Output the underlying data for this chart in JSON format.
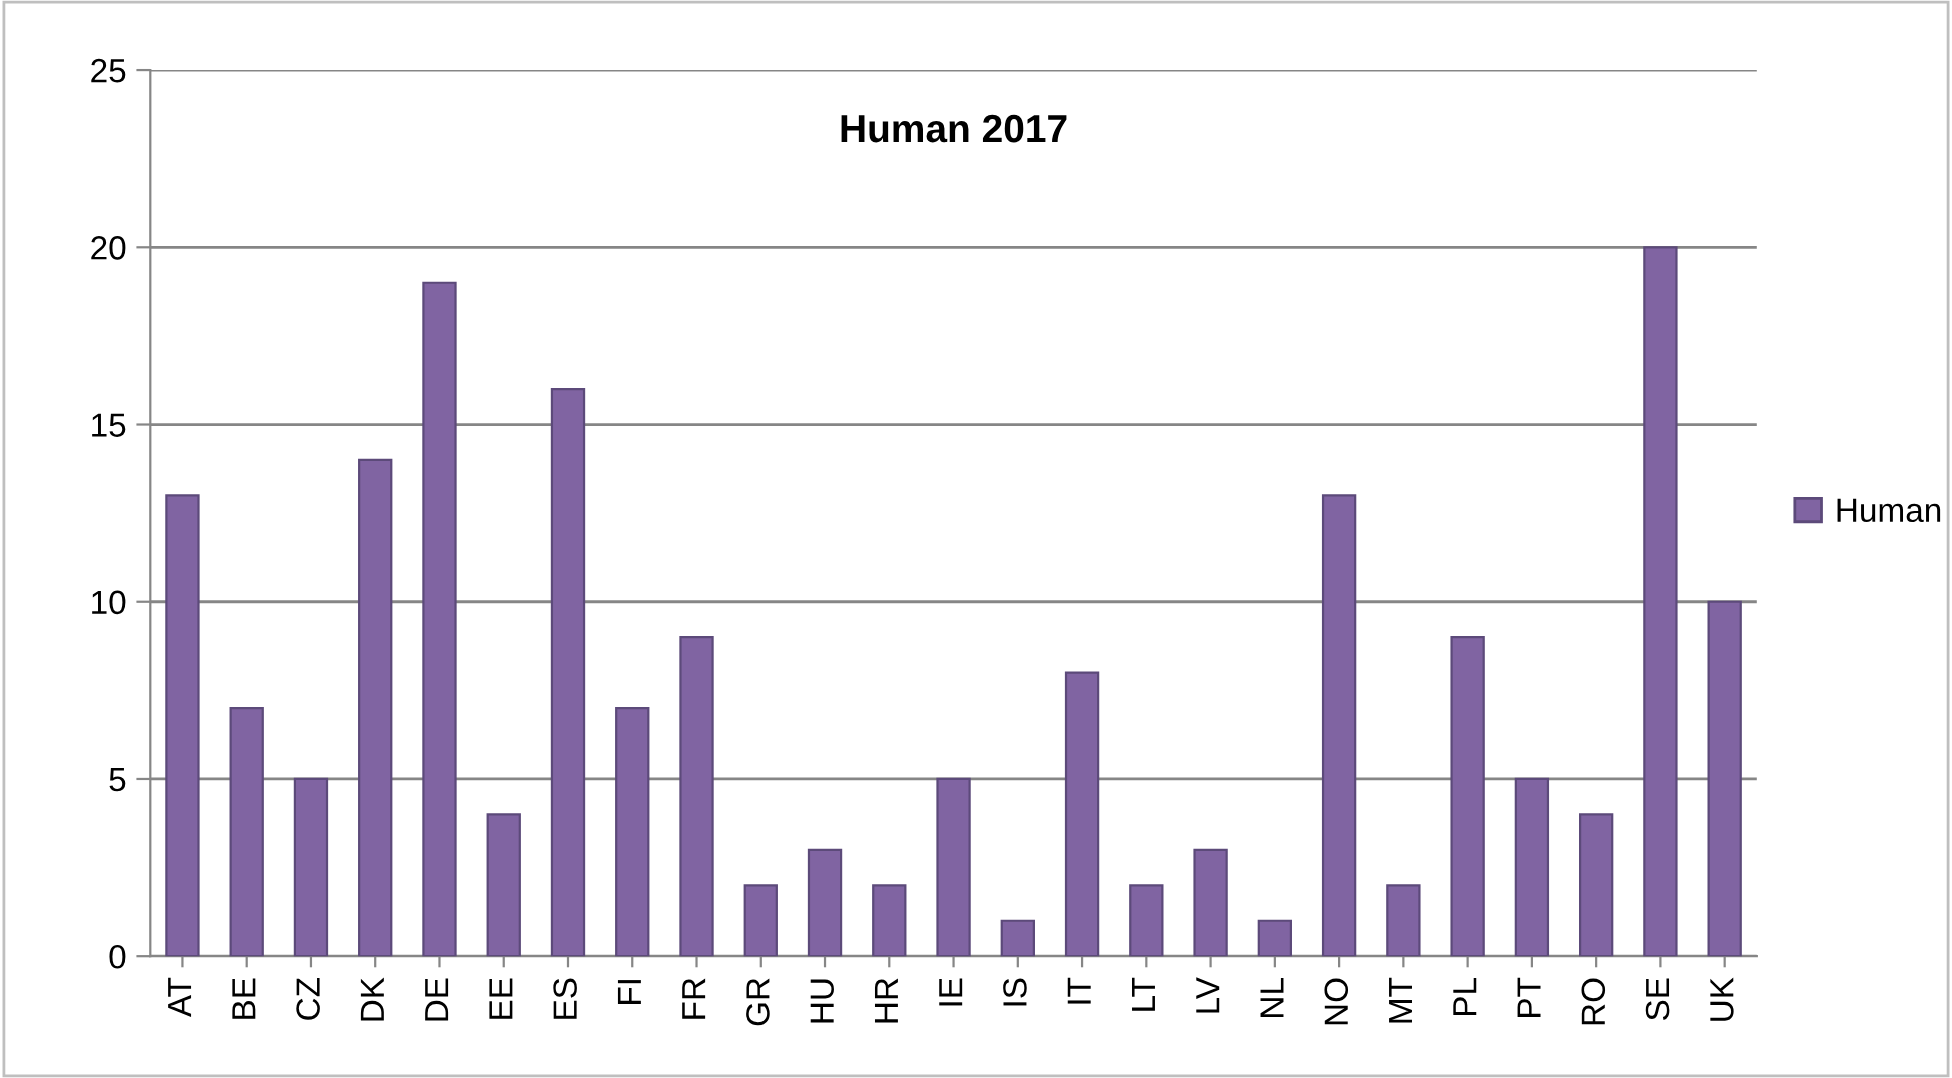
{
  "chart_data": {
    "type": "bar",
    "title": "Human 2017",
    "categories": [
      "AT",
      "BE",
      "CZ",
      "DK",
      "DE",
      "EE",
      "ES",
      "FI",
      "FR",
      "GR",
      "HU",
      "HR",
      "IE",
      "IS",
      "IT",
      "LT",
      "LV",
      "NL",
      "NO",
      "MT",
      "PL",
      "PT",
      "RO",
      "SE",
      "UK"
    ],
    "series": [
      {
        "name": "Human",
        "color": "#8064a2",
        "values": [
          13,
          7,
          5,
          14,
          19,
          4,
          16,
          7,
          9,
          2,
          3,
          2,
          5,
          1,
          8,
          2,
          3,
          1,
          13,
          2,
          9,
          5,
          4,
          20,
          10
        ]
      }
    ],
    "ylim": [
      0,
      25
    ],
    "yticks": [
      0,
      5,
      10,
      15,
      20,
      25
    ],
    "grid": "y",
    "legend": "right"
  }
}
